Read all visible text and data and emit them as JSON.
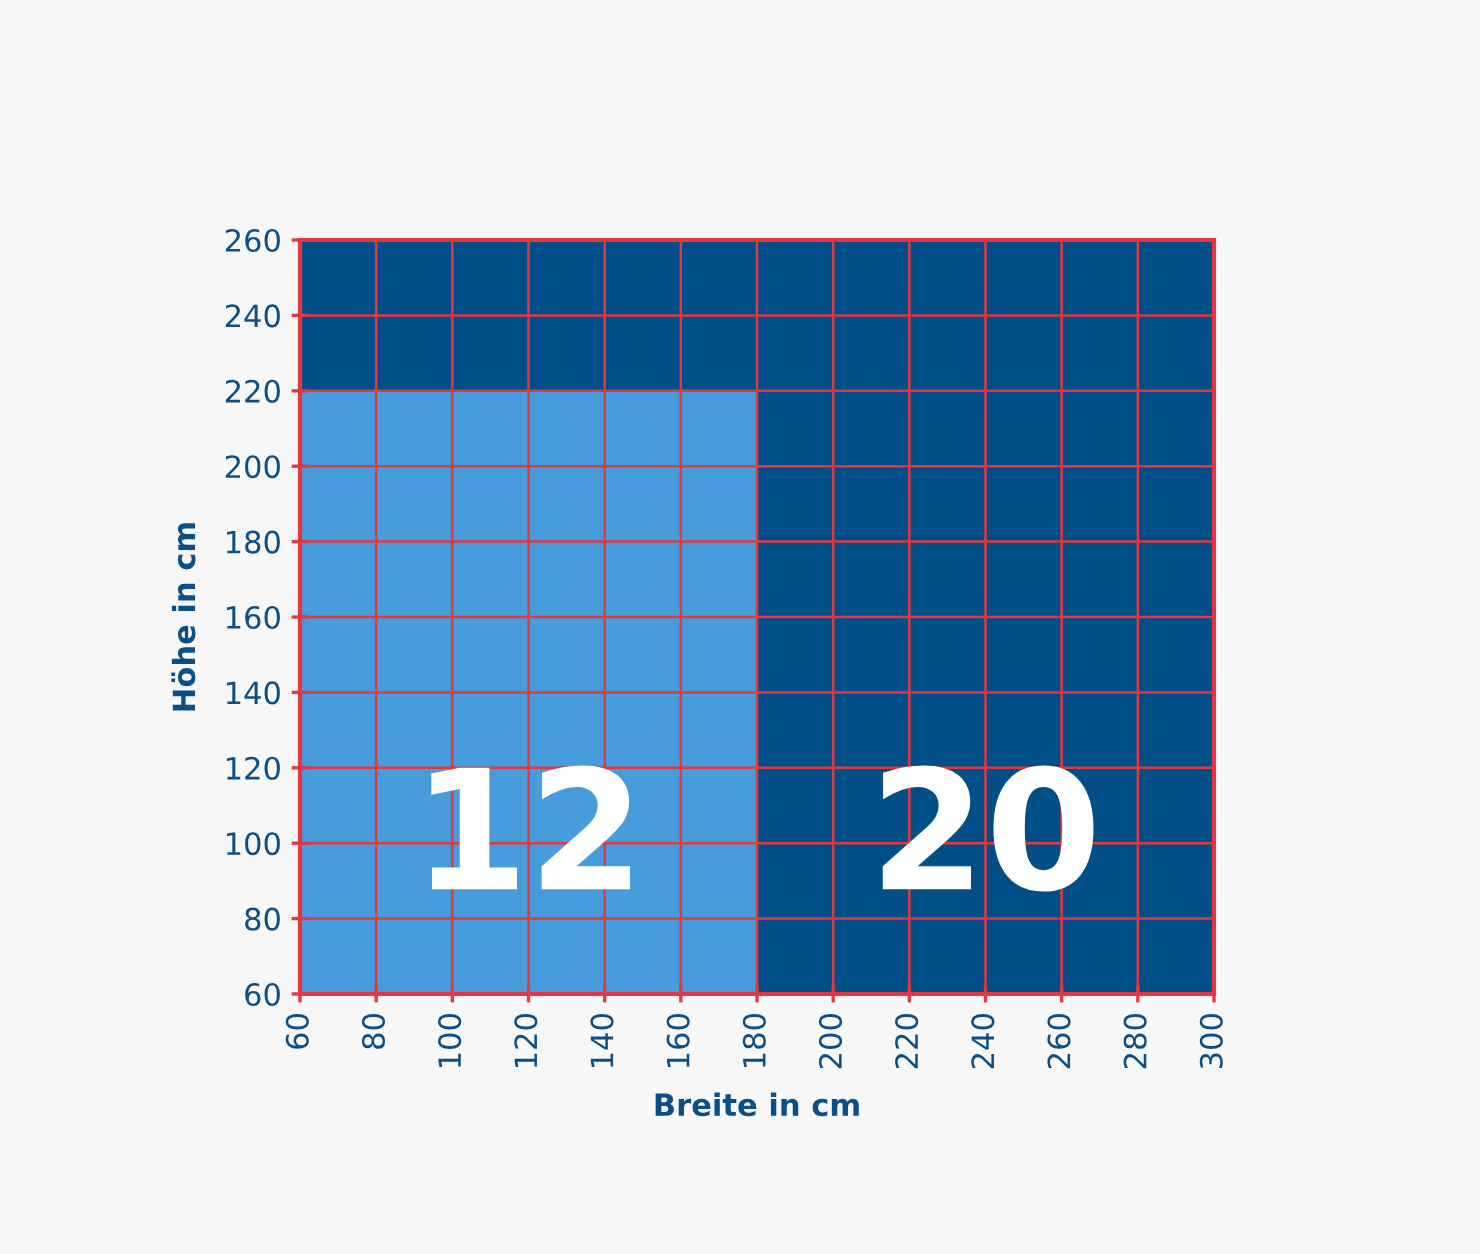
{
  "chart_data": {
    "type": "heatmap",
    "xlabel": "Breite in cm",
    "ylabel": "Höhe in cm",
    "xlim": [
      60,
      300
    ],
    "ylim": [
      60,
      260
    ],
    "xticks": [
      60,
      80,
      100,
      120,
      140,
      160,
      180,
      200,
      220,
      240,
      260,
      280,
      300
    ],
    "yticks": [
      60,
      80,
      100,
      120,
      140,
      160,
      180,
      200,
      220,
      240,
      260
    ],
    "cells": [
      [
        12,
        20
      ]
    ],
    "colors": [
      "#479cdb",
      "#004f88"
    ],
    "data_labels": true,
    "bands": [
      {
        "axis": "y",
        "from": 220,
        "to": 260,
        "color": "#004f88"
      }
    ],
    "grid": true
  }
}
